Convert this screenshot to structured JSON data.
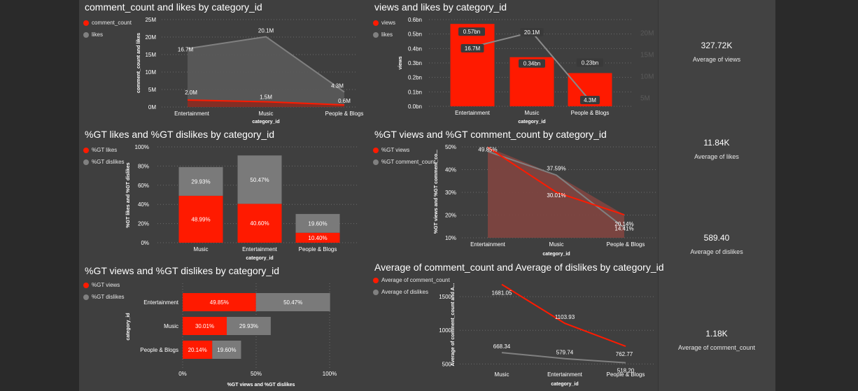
{
  "colors": {
    "red": "#ff1a00",
    "gray": "#808080",
    "text": "#ffffff",
    "muted": "#d9d9d9",
    "grid": "#6b6b6b"
  },
  "panels": [
    {
      "id": "p1",
      "title": "comment_count and likes by category_id",
      "legend": [
        {
          "name": "comment_count",
          "color": "#ff1a00"
        },
        {
          "name": "likes",
          "color": "#808080"
        }
      ]
    },
    {
      "id": "p2",
      "title": "views and likes by category_id",
      "legend": [
        {
          "name": "views",
          "color": "#ff1a00"
        },
        {
          "name": "likes",
          "color": "#808080"
        }
      ]
    },
    {
      "id": "p3",
      "title": "%GT likes and %GT dislikes by category_id",
      "legend": [
        {
          "name": "%GT likes",
          "color": "#ff1a00"
        },
        {
          "name": "%GT dislikes",
          "color": "#808080"
        }
      ]
    },
    {
      "id": "p4",
      "title": "%GT views and %GT comment_count by category_id",
      "legend": [
        {
          "name": "%GT views",
          "color": "#ff1a00"
        },
        {
          "name": "%GT comment_count",
          "color": "#808080"
        }
      ]
    },
    {
      "id": "p5",
      "title": "%GT views and %GT dislikes by category_id",
      "legend": [
        {
          "name": "%GT views",
          "color": "#ff1a00"
        },
        {
          "name": "%GT dislikes",
          "color": "#808080"
        }
      ]
    },
    {
      "id": "p6",
      "title": "Average of comment_count and Average of dislikes by category_id",
      "legend": [
        {
          "name": "Average of comment_count",
          "color": "#ff1a00"
        },
        {
          "name": "Average of dislikes",
          "color": "#808080"
        }
      ]
    }
  ],
  "cards": [
    {
      "value": "327.72K",
      "label": "Average of views"
    },
    {
      "value": "11.84K",
      "label": "Average of likes"
    },
    {
      "value": "589.40",
      "label": "Average of dislikes"
    },
    {
      "value": "1.18K",
      "label": "Average of comment_count"
    }
  ],
  "chart_data": [
    {
      "type": "area",
      "title": "comment_count and likes by category_id",
      "xlabel": "category_id",
      "ylabel": "comment_count and likes",
      "categories": [
        "Entertainment",
        "Music",
        "People & Blogs"
      ],
      "yticks": [
        "0M",
        "5M",
        "10M",
        "15M",
        "20M",
        "25M"
      ],
      "ylim": [
        0,
        25
      ],
      "series": [
        {
          "name": "likes",
          "values": [
            16.7,
            20.1,
            4.3
          ],
          "labels": [
            "16.7M",
            "20.1M",
            "4.3M"
          ]
        },
        {
          "name": "comment_count",
          "values": [
            2.0,
            1.5,
            0.6
          ],
          "labels": [
            "2.0M",
            "1.5M",
            "0.6M"
          ]
        }
      ]
    },
    {
      "type": "bar",
      "title": "views and likes by category_id",
      "xlabel": "category_id",
      "ylabel": "views",
      "categories": [
        "Entertainment",
        "Music",
        "People & Blogs"
      ],
      "yticks": [
        "0.0bn",
        "0.1bn",
        "0.2bn",
        "0.3bn",
        "0.4bn",
        "0.5bn",
        "0.6bn"
      ],
      "ylim": [
        0,
        0.6
      ],
      "y2ticks": [
        "5M",
        "10M",
        "15M",
        "20M"
      ],
      "y2lim": [
        3,
        23
      ],
      "series": [
        {
          "name": "views",
          "values": [
            0.57,
            0.34,
            0.23
          ],
          "labels": [
            "0.57bn",
            "0.34bn",
            "0.23bn"
          ]
        },
        {
          "name": "likes",
          "values": [
            16.7,
            20.1,
            4.3
          ],
          "labels": [
            "16.7M",
            "20.1M",
            "4.3M"
          ]
        }
      ]
    },
    {
      "type": "bar",
      "title": "%GT likes and %GT dislikes by category_id",
      "xlabel": "category_id",
      "ylabel": "%GT likes and %GT dislikes",
      "categories": [
        "Music",
        "Entertainment",
        "People & Blogs"
      ],
      "yticks": [
        "0%",
        "20%",
        "40%",
        "60%",
        "80%",
        "100%"
      ],
      "ylim": [
        0,
        100
      ],
      "series": [
        {
          "name": "%GT likes",
          "values": [
            48.99,
            40.6,
            10.4
          ],
          "labels": [
            "48.99%",
            "40.60%",
            "10.40%"
          ]
        },
        {
          "name": "%GT dislikes",
          "values": [
            29.93,
            50.47,
            19.6
          ],
          "labels": [
            "29.93%",
            "50.47%",
            "19.60%"
          ]
        }
      ]
    },
    {
      "type": "area",
      "title": "%GT views and %GT comment_count by category_id",
      "xlabel": "category_id",
      "ylabel": "%GT views and %GT comment_co...",
      "categories": [
        "Entertainment",
        "Music",
        "People & Blogs"
      ],
      "yticks": [
        "10%",
        "20%",
        "30%",
        "40%",
        "50%"
      ],
      "ylim": [
        10,
        50
      ],
      "series": [
        {
          "name": "%GT views",
          "values": [
            49.85,
            30.01,
            20.14
          ],
          "labels": [
            "49.85%",
            "30.01%",
            "20.14%"
          ]
        },
        {
          "name": "%GT comment_count",
          "values": [
            48.0,
            37.59,
            14.41
          ],
          "labels": [
            "",
            "37.59%",
            "14.41%"
          ]
        }
      ]
    },
    {
      "type": "bar",
      "title": "%GT views and %GT dislikes by category_id",
      "xlabel": "%GT views and %GT dislikes",
      "ylabel": "category_id",
      "categories": [
        "Entertainment",
        "Music",
        "People & Blogs"
      ],
      "xticks": [
        "0%",
        "50%",
        "100%"
      ],
      "xlim": [
        0,
        100
      ],
      "series": [
        {
          "name": "%GT views",
          "values": [
            49.85,
            30.01,
            20.14
          ],
          "labels": [
            "49.85%",
            "30.01%",
            "20.14%"
          ]
        },
        {
          "name": "%GT dislikes",
          "values": [
            50.47,
            29.93,
            19.6
          ],
          "labels": [
            "50.47%",
            "29.93%",
            "19.60%"
          ]
        }
      ]
    },
    {
      "type": "line",
      "title": "Average of comment_count and Average of dislikes by category_id",
      "xlabel": "category_id",
      "ylabel": "Average of comment_count and A...",
      "categories": [
        "Music",
        "Entertainment",
        "People & Blogs"
      ],
      "yticks": [
        "500",
        "1000",
        "1500"
      ],
      "ylim": [
        400,
        1750
      ],
      "series": [
        {
          "name": "Average of comment_count",
          "values": [
            1681.05,
            1103.93,
            762.77
          ],
          "labels": [
            "1681.05",
            "1103.93",
            "762.77"
          ]
        },
        {
          "name": "Average of dislikes",
          "values": [
            668.34,
            579.74,
            518.2
          ],
          "labels": [
            "668.34",
            "579.74",
            "518.20"
          ]
        }
      ]
    }
  ]
}
